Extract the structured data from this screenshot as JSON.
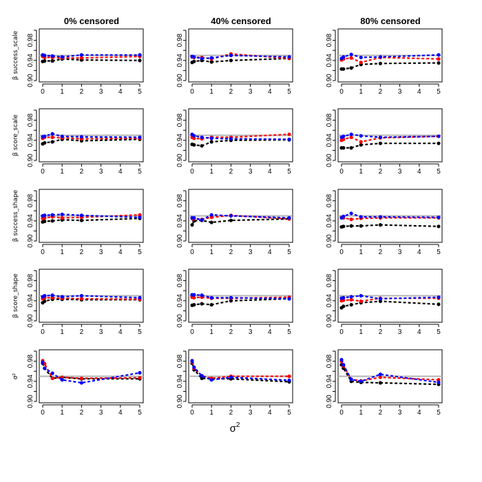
{
  "chart_data": {
    "type": "line",
    "layout": "5x3 grid of panels",
    "x": [
      0,
      0.1,
      0.5,
      1,
      2,
      5
    ],
    "xlim": [
      0,
      5
    ],
    "ylim": [
      0.9,
      1.0
    ],
    "x_ticks": [
      0,
      1,
      2,
      3,
      4,
      5
    ],
    "y_ticks": [
      0.9,
      0.94,
      0.98
    ],
    "y_tick_labels": [
      "0.90",
      "0.94",
      "0.98"
    ],
    "reference_line": 0.95,
    "reference_color": "#b3b3b3",
    "xlabel_base": "σ",
    "xlabel_sup": "2",
    "columns": [
      "0% censored",
      "40% censored",
      "80% censored"
    ],
    "rows": [
      "β success_scale",
      "β score_scale",
      "β success_shape",
      "β score_shape",
      "σ²"
    ],
    "series_colors": [
      "#000000",
      "#ff0000",
      "#0000ff"
    ],
    "panels": [
      [
        {
          "series": [
            {
              "values": [
                0.938,
                0.939,
                0.939,
                0.943,
                0.941,
                0.94
              ]
            },
            {
              "values": [
                0.948,
                0.946,
                0.946,
                0.945,
                0.945,
                0.948
              ]
            },
            {
              "values": [
                0.951,
                0.95,
                0.949,
                0.947,
                0.951,
                0.951
              ]
            }
          ]
        },
        {
          "series": [
            {
              "values": [
                0.933,
                0.935,
                0.937,
                0.942,
                0.939,
                0.942
              ]
            },
            {
              "values": [
                0.944,
                0.946,
                0.946,
                0.945,
                0.943,
                0.944
              ]
            },
            {
              "values": [
                0.947,
                0.948,
                0.953,
                0.948,
                0.947,
                0.946
              ]
            }
          ]
        },
        {
          "series": [
            {
              "values": [
                0.938,
                0.939,
                0.94,
                0.942,
                0.941,
                0.945
              ]
            },
            {
              "values": [
                0.945,
                0.946,
                0.948,
                0.946,
                0.947,
                0.952
              ]
            },
            {
              "values": [
                0.95,
                0.951,
                0.952,
                0.953,
                0.951,
                0.947
              ]
            }
          ]
        },
        {
          "series": [
            {
              "values": [
                0.936,
                0.939,
                0.943,
                0.943,
                0.942,
                0.942
              ]
            },
            {
              "values": [
                0.944,
                0.946,
                0.946,
                0.945,
                0.944,
                0.943
              ]
            },
            {
              "values": [
                0.948,
                0.95,
                0.951,
                0.948,
                0.95,
                0.946
              ]
            }
          ]
        },
        {
          "series": [
            {
              "values": [
                0.976,
                0.966,
                0.946,
                0.948,
                0.945,
                0.945
              ]
            },
            {
              "values": [
                0.981,
                0.975,
                0.946,
                0.948,
                0.946,
                0.947
              ]
            },
            {
              "values": [
                0.978,
                0.966,
                0.956,
                0.943,
                0.937,
                0.957
              ]
            }
          ]
        }
      ],
      [
        {
          "series": [
            {
              "values": [
                0.936,
                0.938,
                0.94,
                0.937,
                0.94,
                0.944
              ]
            },
            {
              "values": [
                0.947,
                0.946,
                0.946,
                0.943,
                0.953,
                0.944
              ]
            },
            {
              "values": [
                0.948,
                0.947,
                0.944,
                0.945,
                0.95,
                0.947
              ]
            }
          ]
        },
        {
          "series": [
            {
              "values": [
                0.932,
                0.931,
                0.929,
                0.937,
                0.94,
                0.941
              ]
            },
            {
              "values": [
                0.946,
                0.944,
                0.943,
                0.946,
                0.946,
                0.952
              ]
            },
            {
              "values": [
                0.952,
                0.949,
                0.946,
                0.944,
                0.943,
                0.942
              ]
            }
          ]
        },
        {
          "series": [
            {
              "values": [
                0.932,
                0.94,
                0.941,
                0.937,
                0.941,
                0.944
              ]
            },
            {
              "values": [
                0.945,
                0.944,
                0.943,
                0.947,
                0.951,
                0.944
              ]
            },
            {
              "values": [
                0.946,
                0.946,
                0.942,
                0.952,
                0.95,
                0.946
              ]
            }
          ]
        },
        {
          "series": [
            {
              "values": [
                0.931,
                0.932,
                0.934,
                0.932,
                0.94,
                0.944
              ]
            },
            {
              "values": [
                0.947,
                0.946,
                0.947,
                0.945,
                0.945,
                0.947
              ]
            },
            {
              "values": [
                0.952,
                0.952,
                0.951,
                0.946,
                0.946,
                0.944
              ]
            }
          ]
        },
        {
          "series": [
            {
              "values": [
                0.976,
                0.963,
                0.946,
                0.945,
                0.945,
                0.939
              ]
            },
            {
              "values": [
                0.979,
                0.966,
                0.951,
                0.946,
                0.95,
                0.95
              ]
            },
            {
              "values": [
                0.981,
                0.968,
                0.951,
                0.943,
                0.948,
                0.942
              ]
            }
          ]
        }
      ],
      [
        {
          "series": [
            {
              "values": [
                0.923,
                0.923,
                0.925,
                0.932,
                0.934,
                0.935
              ]
            },
            {
              "values": [
                0.941,
                0.943,
                0.945,
                0.936,
                0.946,
                0.943
              ]
            },
            {
              "values": [
                0.944,
                0.947,
                0.952,
                0.946,
                0.947,
                0.951
              ]
            }
          ]
        },
        {
          "series": [
            {
              "values": [
                0.925,
                0.925,
                0.925,
                0.931,
                0.934,
                0.934
              ]
            },
            {
              "values": [
                0.94,
                0.942,
                0.946,
                0.937,
                0.945,
                0.948
              ]
            },
            {
              "values": [
                0.946,
                0.948,
                0.952,
                0.949,
                0.946,
                0.948
              ]
            }
          ]
        },
        {
          "series": [
            {
              "values": [
                0.928,
                0.929,
                0.93,
                0.93,
                0.932,
                0.929
              ]
            },
            {
              "values": [
                0.947,
                0.946,
                0.943,
                0.945,
                0.946,
                0.946
              ]
            },
            {
              "values": [
                0.946,
                0.949,
                0.955,
                0.948,
                0.948,
                0.947
              ]
            }
          ]
        },
        {
          "series": [
            {
              "values": [
                0.926,
                0.929,
                0.932,
                0.936,
                0.939,
                0.933
              ]
            },
            {
              "values": [
                0.94,
                0.941,
                0.942,
                0.939,
                0.945,
                0.945
              ]
            },
            {
              "values": [
                0.945,
                0.946,
                0.948,
                0.95,
                0.944,
                0.947
              ]
            }
          ]
        },
        {
          "series": [
            {
              "values": [
                0.973,
                0.966,
                0.94,
                0.938,
                0.937,
                0.934
              ]
            },
            {
              "values": [
                0.98,
                0.971,
                0.944,
                0.941,
                0.948,
                0.943
              ]
            },
            {
              "values": [
                0.983,
                0.973,
                0.944,
                0.94,
                0.954,
                0.938
              ]
            }
          ]
        }
      ]
    ]
  }
}
